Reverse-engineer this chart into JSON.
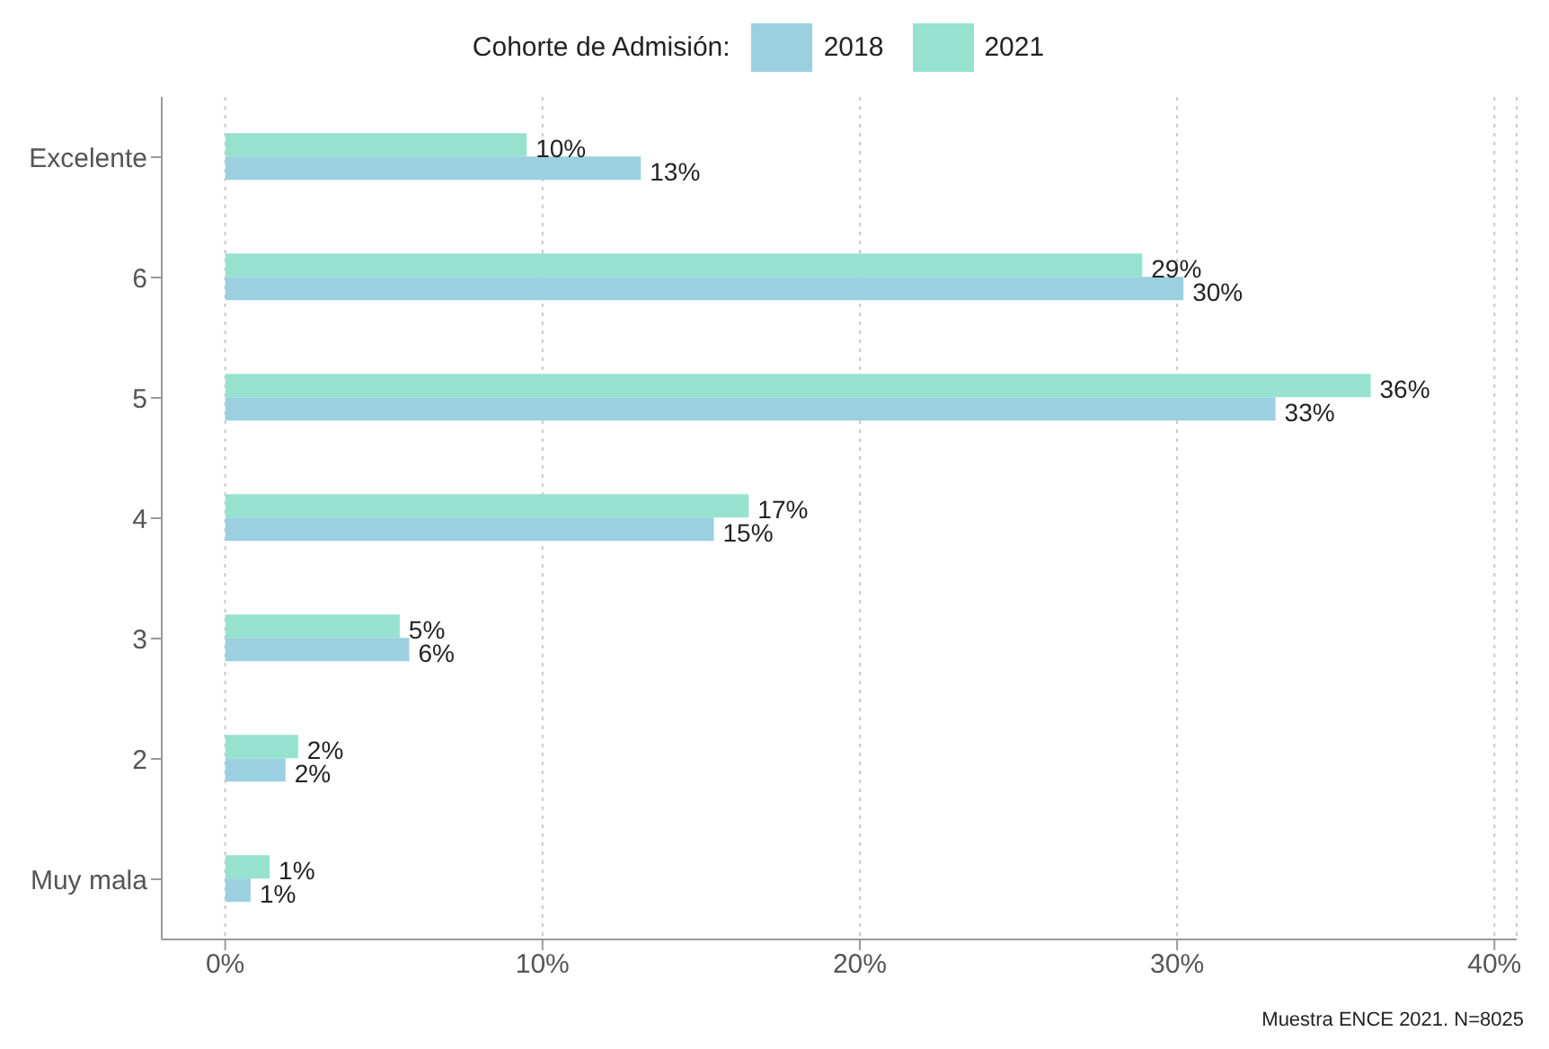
{
  "chart_data": {
    "type": "bar",
    "orientation": "horizontal",
    "legend_title": "Cohorte de Admisión:",
    "categories": [
      "Excelente",
      "6",
      "5",
      "4",
      "3",
      "2",
      "Muy mala"
    ],
    "series": [
      {
        "name": "2018",
        "color": "#9ad0e0",
        "values": [
          13.1,
          30.2,
          33.1,
          15.4,
          5.8,
          1.9,
          0.8
        ],
        "value_labels": [
          "13%",
          "30%",
          "33%",
          "15%",
          "6%",
          "2%",
          "1%"
        ]
      },
      {
        "name": "2021",
        "color": "#96e2cf",
        "values": [
          9.5,
          28.9,
          36.1,
          16.5,
          5.5,
          2.3,
          1.4
        ],
        "value_labels": [
          "10%",
          "29%",
          "36%",
          "17%",
          "5%",
          "2%",
          "1%"
        ]
      }
    ],
    "xlim": [
      -2,
      40.7
    ],
    "xticks": [
      {
        "value": 0,
        "label": "0%"
      },
      {
        "value": 10,
        "label": "10%"
      },
      {
        "value": 20,
        "label": "20%"
      },
      {
        "value": 30,
        "label": "30%"
      },
      {
        "value": 40,
        "label": "40%"
      }
    ],
    "grid": "x",
    "legend": "top",
    "annotations": [
      "Muestra ENCE 2021. N=8025"
    ]
  }
}
